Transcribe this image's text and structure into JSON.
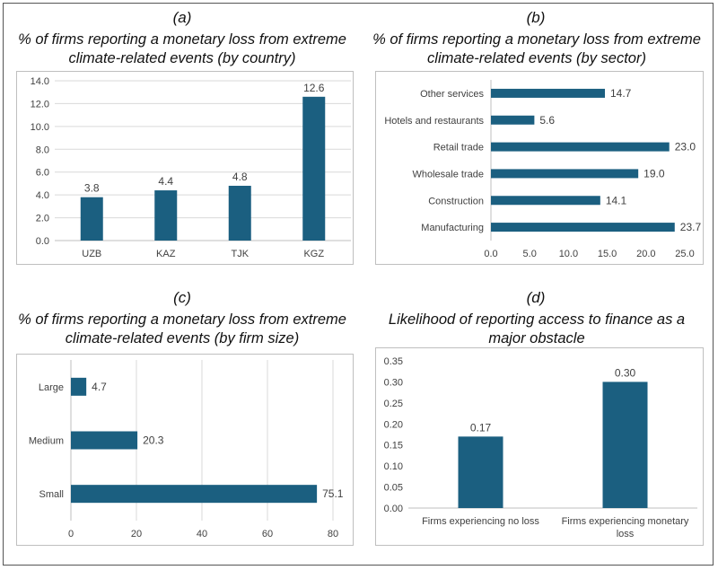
{
  "chart_data": [
    {
      "panel": "(a)",
      "type": "bar",
      "title": "% of firms reporting a monetary loss from extreme climate-related events (by country)",
      "categories": [
        "UZB",
        "KAZ",
        "TJK",
        "KGZ"
      ],
      "values": [
        3.8,
        4.4,
        4.8,
        12.6
      ],
      "data_labels": [
        "3.8",
        "4.4",
        "4.8",
        "12.6"
      ],
      "ylim": [
        0,
        14
      ],
      "ticks": [
        "0.0",
        "2.0",
        "4.0",
        "6.0",
        "8.0",
        "10.0",
        "12.0",
        "14.0"
      ],
      "tick_values": [
        0,
        2,
        4,
        6,
        8,
        10,
        12,
        14
      ],
      "color": "#1b5f80"
    },
    {
      "panel": "(b)",
      "type": "bar",
      "orientation": "horizontal",
      "title": "% of firms reporting a monetary loss from extreme climate-related events (by sector)",
      "categories": [
        "Other services",
        "Hotels and restaurants",
        "Retail trade",
        "Wholesale trade",
        "Construction",
        "Manufacturing"
      ],
      "values": [
        14.7,
        5.6,
        23.0,
        19.0,
        14.1,
        23.7
      ],
      "data_labels": [
        "14.7",
        "5.6",
        "23.0",
        "19.0",
        "14.1",
        "23.7"
      ],
      "xlim": [
        0,
        25
      ],
      "ticks": [
        "0.0",
        "5.0",
        "10.0",
        "15.0",
        "20.0",
        "25.0"
      ],
      "tick_values": [
        0,
        5,
        10,
        15,
        20,
        25
      ],
      "color": "#1b5f80"
    },
    {
      "panel": "(c)",
      "type": "bar",
      "orientation": "horizontal",
      "title": "% of firms reporting a monetary loss from extreme climate-related events (by firm size)",
      "categories": [
        "Large",
        "Medium",
        "Small"
      ],
      "values": [
        4.7,
        20.3,
        75.1
      ],
      "data_labels": [
        "4.7",
        "20.3",
        "75.1"
      ],
      "xlim": [
        0,
        80
      ],
      "ticks": [
        "0",
        "20",
        "40",
        "60",
        "80"
      ],
      "tick_values": [
        0,
        20,
        40,
        60,
        80
      ],
      "color": "#1b5f80"
    },
    {
      "panel": "(d)",
      "type": "bar",
      "title": "Likelihood of reporting access to finance as a major obstacle",
      "categories": [
        "Firms experiencing no loss",
        "Firms experiencing monetary loss"
      ],
      "values": [
        0.17,
        0.3
      ],
      "data_labels": [
        "0.17",
        "0.30"
      ],
      "ylim": [
        0,
        0.35
      ],
      "ticks": [
        "0.00",
        "0.05",
        "0.10",
        "0.15",
        "0.20",
        "0.25",
        "0.30",
        "0.35"
      ],
      "tick_values": [
        0,
        0.05,
        0.1,
        0.15,
        0.2,
        0.25,
        0.3,
        0.35
      ],
      "color": "#1b5f80"
    }
  ]
}
